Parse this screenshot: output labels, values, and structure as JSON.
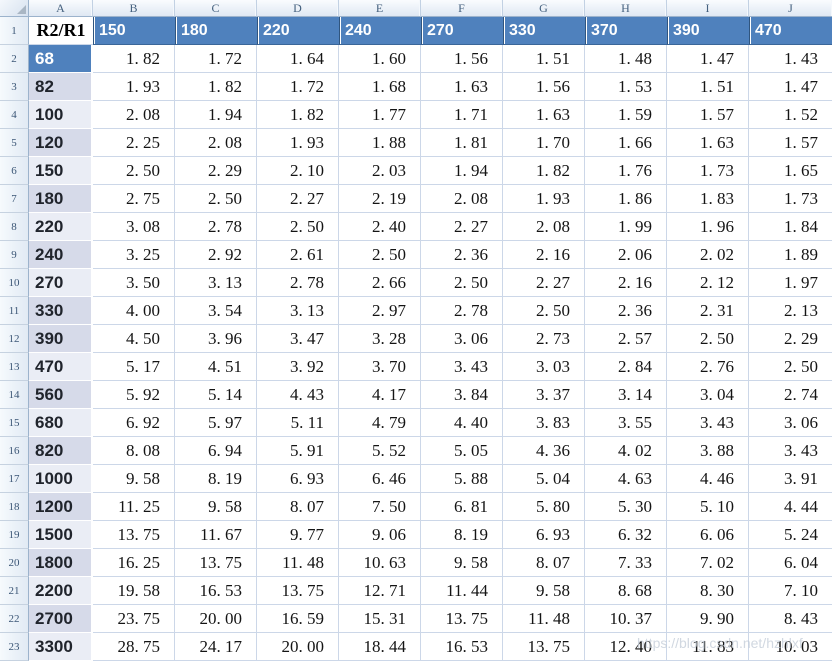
{
  "sheet": {
    "column_letters": [
      "A",
      "B",
      "C",
      "D",
      "E",
      "F",
      "G",
      "H",
      "I",
      "J"
    ],
    "row_numbers": [
      "1",
      "2",
      "3",
      "4",
      "5",
      "6",
      "7",
      "8",
      "9",
      "10",
      "11",
      "12",
      "13",
      "14",
      "15",
      "16",
      "17",
      "18",
      "19",
      "20",
      "21",
      "22",
      "23"
    ],
    "header_row": {
      "label": "R2/R1",
      "values": [
        "150",
        "180",
        "220",
        "240",
        "270",
        "330",
        "370",
        "390",
        "470"
      ]
    },
    "rows": [
      {
        "label": "68",
        "band": "blue",
        "cells": [
          "1. 82",
          "1. 72",
          "1. 64",
          "1. 60",
          "1. 56",
          "1. 51",
          "1. 48",
          "1. 47",
          "1. 43"
        ]
      },
      {
        "label": "82",
        "band": "dark",
        "cells": [
          "1. 93",
          "1. 82",
          "1. 72",
          "1. 68",
          "1. 63",
          "1. 56",
          "1. 53",
          "1. 51",
          "1. 47"
        ]
      },
      {
        "label": "100",
        "band": "light",
        "cells": [
          "2. 08",
          "1. 94",
          "1. 82",
          "1. 77",
          "1. 71",
          "1. 63",
          "1. 59",
          "1. 57",
          "1. 52"
        ]
      },
      {
        "label": "120",
        "band": "dark",
        "cells": [
          "2. 25",
          "2. 08",
          "1. 93",
          "1. 88",
          "1. 81",
          "1. 70",
          "1. 66",
          "1. 63",
          "1. 57"
        ]
      },
      {
        "label": "150",
        "band": "light",
        "cells": [
          "2. 50",
          "2. 29",
          "2. 10",
          "2. 03",
          "1. 94",
          "1. 82",
          "1. 76",
          "1. 73",
          "1. 65"
        ]
      },
      {
        "label": "180",
        "band": "dark",
        "cells": [
          "2. 75",
          "2. 50",
          "2. 27",
          "2. 19",
          "2. 08",
          "1. 93",
          "1. 86",
          "1. 83",
          "1. 73"
        ]
      },
      {
        "label": "220",
        "band": "light",
        "cells": [
          "3. 08",
          "2. 78",
          "2. 50",
          "2. 40",
          "2. 27",
          "2. 08",
          "1. 99",
          "1. 96",
          "1. 84"
        ]
      },
      {
        "label": "240",
        "band": "dark",
        "cells": [
          "3. 25",
          "2. 92",
          "2. 61",
          "2. 50",
          "2. 36",
          "2. 16",
          "2. 06",
          "2. 02",
          "1. 89"
        ]
      },
      {
        "label": "270",
        "band": "light",
        "cells": [
          "3. 50",
          "3. 13",
          "2. 78",
          "2. 66",
          "2. 50",
          "2. 27",
          "2. 16",
          "2. 12",
          "1. 97"
        ]
      },
      {
        "label": "330",
        "band": "dark",
        "cells": [
          "4. 00",
          "3. 54",
          "3. 13",
          "2. 97",
          "2. 78",
          "2. 50",
          "2. 36",
          "2. 31",
          "2. 13"
        ]
      },
      {
        "label": "390",
        "band": "dark",
        "cells": [
          "4. 50",
          "3. 96",
          "3. 47",
          "3. 28",
          "3. 06",
          "2. 73",
          "2. 57",
          "2. 50",
          "2. 29"
        ]
      },
      {
        "label": "470",
        "band": "light",
        "cells": [
          "5. 17",
          "4. 51",
          "3. 92",
          "3. 70",
          "3. 43",
          "3. 03",
          "2. 84",
          "2. 76",
          "2. 50"
        ]
      },
      {
        "label": "560",
        "band": "dark",
        "cells": [
          "5. 92",
          "5. 14",
          "4. 43",
          "4. 17",
          "3. 84",
          "3. 37",
          "3. 14",
          "3. 04",
          "2. 74"
        ]
      },
      {
        "label": "680",
        "band": "light",
        "cells": [
          "6. 92",
          "5. 97",
          "5. 11",
          "4. 79",
          "4. 40",
          "3. 83",
          "3. 55",
          "3. 43",
          "3. 06"
        ]
      },
      {
        "label": "820",
        "band": "dark",
        "cells": [
          "8. 08",
          "6. 94",
          "5. 91",
          "5. 52",
          "5. 05",
          "4. 36",
          "4. 02",
          "3. 88",
          "3. 43"
        ]
      },
      {
        "label": "1000",
        "band": "light",
        "cells": [
          "9. 58",
          "8. 19",
          "6. 93",
          "6. 46",
          "5. 88",
          "5. 04",
          "4. 63",
          "4. 46",
          "3. 91"
        ]
      },
      {
        "label": "1200",
        "band": "dark",
        "cells": [
          "11. 25",
          "9. 58",
          "8. 07",
          "7. 50",
          "6. 81",
          "5. 80",
          "5. 30",
          "5. 10",
          "4. 44"
        ]
      },
      {
        "label": "1500",
        "band": "light",
        "cells": [
          "13. 75",
          "11. 67",
          "9. 77",
          "9. 06",
          "8. 19",
          "6. 93",
          "6. 32",
          "6. 06",
          "5. 24"
        ]
      },
      {
        "label": "1800",
        "band": "dark",
        "cells": [
          "16. 25",
          "13. 75",
          "11. 48",
          "10. 63",
          "9. 58",
          "8. 07",
          "7. 33",
          "7. 02",
          "6. 04"
        ]
      },
      {
        "label": "2200",
        "band": "light",
        "cells": [
          "19. 58",
          "16. 53",
          "13. 75",
          "12. 71",
          "11. 44",
          "9. 58",
          "8. 68",
          "8. 30",
          "7. 10"
        ]
      },
      {
        "label": "2700",
        "band": "dark",
        "cells": [
          "23. 75",
          "20. 00",
          "16. 59",
          "15. 31",
          "13. 75",
          "11. 48",
          "10. 37",
          "9. 90",
          "8. 43"
        ]
      },
      {
        "label": "3300",
        "band": "light",
        "cells": [
          "28. 75",
          "24. 17",
          "20. 00",
          "18. 44",
          "16. 53",
          "13. 75",
          "12. 40",
          "11. 83",
          "10. 03"
        ]
      }
    ],
    "watermark": "https://blog.csdn.net/hzhlxf",
    "colors": {
      "header_blue": "#4f81bd",
      "band_dark": "#d6dae9",
      "band_light": "#eaedf5",
      "gridline": "#ccd7e8",
      "chrome_border": "#9cb3cc",
      "watermark_gray": "#c2cbd7"
    }
  }
}
